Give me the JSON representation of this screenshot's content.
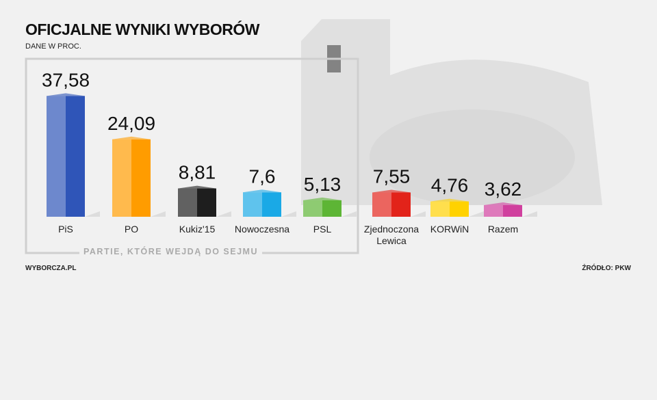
{
  "chart_data": {
    "type": "bar",
    "title": "OFICJALNE WYNIKI WYBORÓW",
    "subtitle": "DANE W PROC.",
    "group_label": "PARTIE, KTÓRE WEJDĄ DO SEJMU",
    "source_left": "WYBORCZA.PL",
    "source_right": "ŹRÓDŁO: PKW",
    "categories": [
      "PiS",
      "PO",
      "Kukiz'15",
      "Nowoczesna",
      "PSL",
      "Zjednoczona Lewica",
      "KORWiN",
      "Razem"
    ],
    "values": [
      37.58,
      24.09,
      8.81,
      7.6,
      5.13,
      7.55,
      4.76,
      3.62
    ],
    "value_labels": [
      "37,58",
      "24,09",
      "8,81",
      "7,6",
      "5,13",
      "7,55",
      "4,76",
      "3,62"
    ],
    "colors": [
      "#2f55b8",
      "#ff9c00",
      "#1e1e1e",
      "#1aa9e6",
      "#5db535",
      "#e2231a",
      "#ffd200",
      "#d0409e"
    ]
  }
}
